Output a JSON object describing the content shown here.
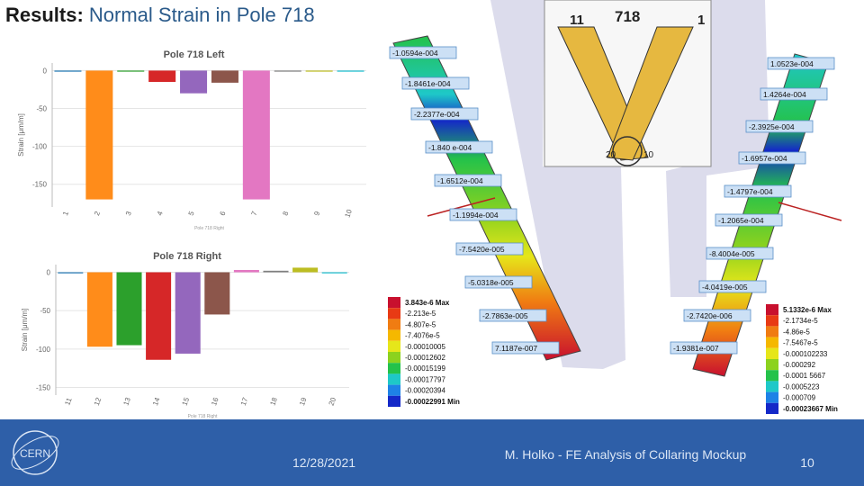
{
  "title": {
    "bold": "Results:",
    "rest": " Normal Strain in Pole 718"
  },
  "chart_data": [
    {
      "type": "bar",
      "title": "Pole 718 Left",
      "xlabel": "Pole 718 Right",
      "ylabel": "Strain [μm/m]",
      "categories": [
        "1",
        "2",
        "3",
        "4",
        "5",
        "6",
        "7",
        "8",
        "9",
        "10"
      ],
      "values": [
        0,
        -170,
        -1,
        -15,
        -30,
        -16,
        -170,
        -1,
        -1,
        0
      ],
      "colors": [
        "#1f77b4",
        "#ff8c1a",
        "#2ca02c",
        "#d62728",
        "#9467bd",
        "#8c564b",
        "#e377c2",
        "#7f7f7f",
        "#bcbd22",
        "#17becf"
      ],
      "yticks": [
        0,
        -50,
        -100,
        -150
      ],
      "ylim": [
        -180,
        10
      ],
      "grid": true
    },
    {
      "type": "bar",
      "title": "Pole 718 Right",
      "xlabel": "Pole 718 Right",
      "ylabel": "Strain [μm/m]",
      "categories": [
        "11",
        "12",
        "13",
        "14",
        "15",
        "16",
        "17",
        "18",
        "19",
        "20"
      ],
      "values": [
        0,
        -97,
        -95,
        -114,
        -106,
        -55,
        3,
        2,
        6,
        0
      ],
      "colors": [
        "#1f77b4",
        "#ff8c1a",
        "#2ca02c",
        "#d62728",
        "#9467bd",
        "#8c564b",
        "#e377c2",
        "#7f7f7f",
        "#bcbd22",
        "#17becf"
      ],
      "yticks": [
        0,
        -50,
        -100,
        -150
      ],
      "ylim": [
        -160,
        10
      ],
      "grid": true
    }
  ],
  "fe": {
    "header": {
      "left": "11",
      "center": "718",
      "right": "1"
    },
    "bottom": {
      "left": "20",
      "right": "10"
    },
    "left_probes": [
      "-1.0594e-004",
      "-1.8461e-004",
      "-2.2377e-004",
      "-1.840 e-004",
      "-1.6512e-004",
      "-1.1994e-004",
      "-7.5420e-005",
      "-5.0318e-005",
      "-2.7863e-005",
      "7.1187e-007"
    ],
    "right_probes": [
      "1.0523e-004",
      "1.4264e-004",
      "-2.3925e-004",
      "-1.6957e-004",
      "-1.4797e-004",
      "-1.2065e-004",
      "-8.4004e-005",
      "-4.0419e-005",
      "-2.7420e-006",
      "-1.9381e-007"
    ],
    "legend_left": [
      "3.843e-6 Max",
      "-2.213e-5",
      "-4.807e-5",
      "-7.4076e-5",
      "-0.00010005",
      "-0.00012602",
      "-0.00015199",
      "-0.00017797",
      "-0.00020394",
      "-0.00022991 Min"
    ],
    "legend_right": [
      "5.1332e-6 Max",
      "-2.1734e-5",
      "-4.86e-5",
      "-7.5467e-5",
      "-0.000102233",
      "-0.000292",
      "-0.0001 5667",
      "-0.0005223",
      "-0.000709",
      "-0.00023667 Min"
    ],
    "legend_colors": [
      "#c8102e",
      "#e83a14",
      "#f07c12",
      "#f5b800",
      "#e6e61a",
      "#8cd21e",
      "#24c24a",
      "#1ec8c8",
      "#1e82e6",
      "#1428c8"
    ]
  },
  "footer": {
    "date": "12/28/2021",
    "author": "M. Holko - FE Analysis of Collaring Mockup",
    "page": "10",
    "logo": "CERN"
  }
}
